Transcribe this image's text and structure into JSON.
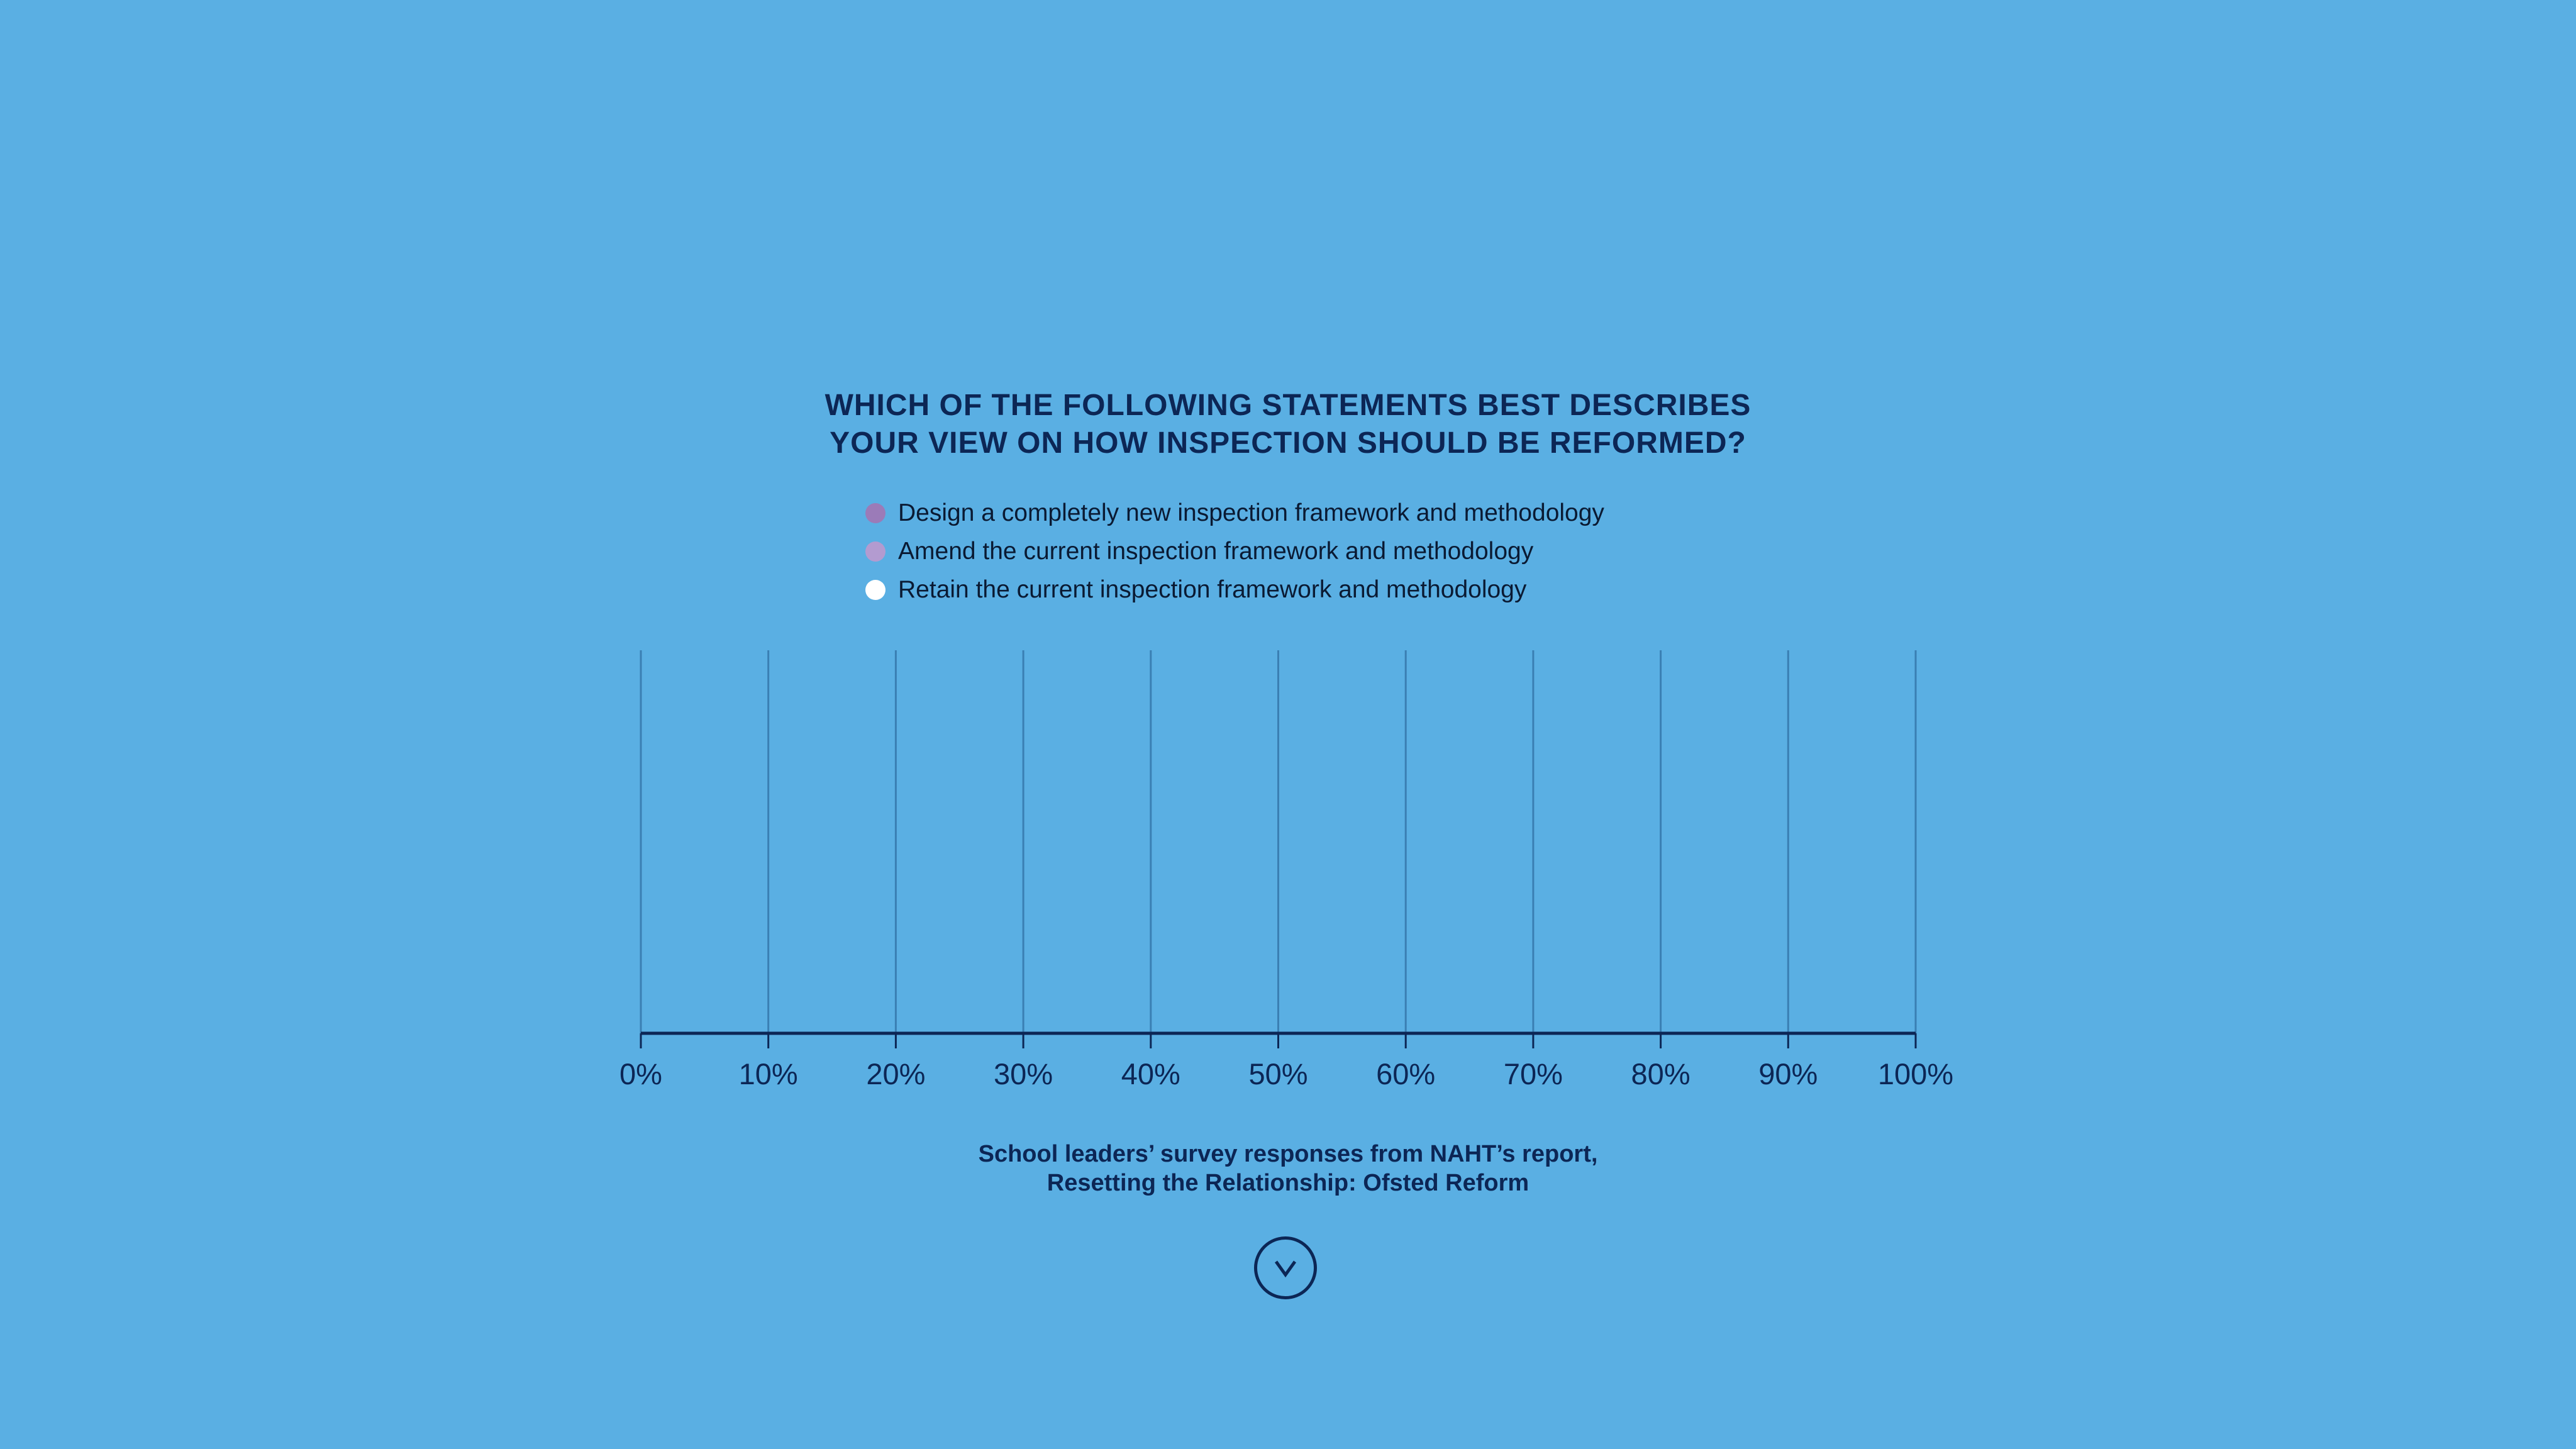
{
  "chart_data": {
    "type": "bar",
    "orientation": "horizontal",
    "stacked": true,
    "title": [
      "WHICH OF THE FOLLOWING STATEMENTS BEST DESCRIBES",
      "YOUR VIEW ON HOW INSPECTION SHOULD BE REFORMED?"
    ],
    "legend": [
      {
        "label": "Design a completely new inspection framework and methodology",
        "color": "#9b7bb8"
      },
      {
        "label": "Amend the current inspection framework and methodology",
        "color": "#b39bd0"
      },
      {
        "label": "Retain the current inspection framework and methodology",
        "color": "#ffffff"
      }
    ],
    "legend_placement": "top",
    "series": [],
    "xlim": [
      0,
      100
    ],
    "x_ticks": [
      "0%",
      "10%",
      "20%",
      "30%",
      "40%",
      "50%",
      "60%",
      "70%",
      "80%",
      "90%",
      "100%"
    ],
    "grid": true,
    "caption": [
      "School leaders’ survey responses from NAHT’s report,",
      "Resetting the Relationship: Ofsted Reform"
    ]
  },
  "colors": {
    "background": "#5aafe3",
    "text": "#0c2655",
    "grid": "#3a7fb3"
  },
  "scroll_button": {
    "icon": "chevron-down-icon"
  }
}
